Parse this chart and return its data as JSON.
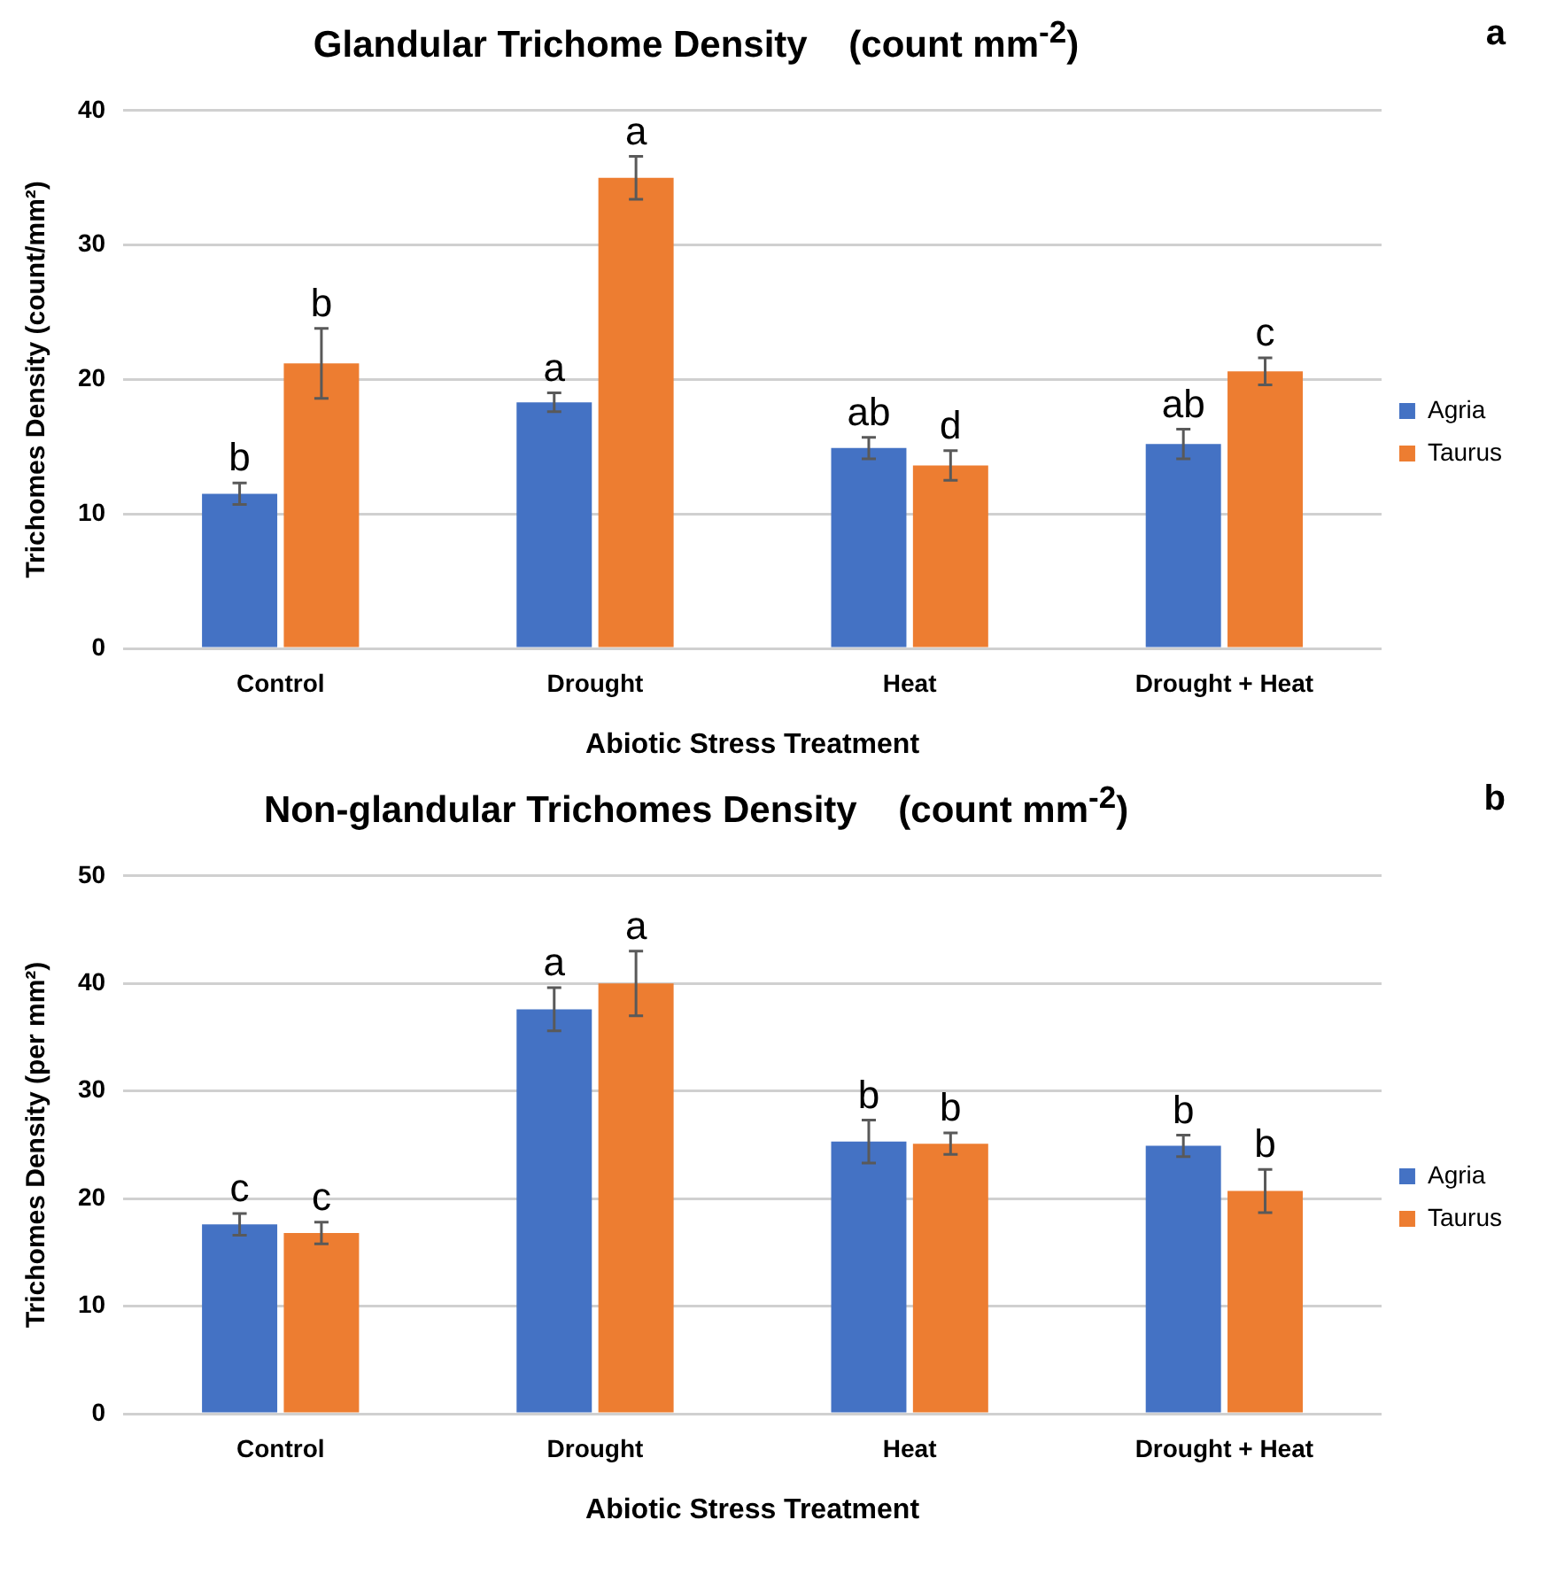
{
  "chart_data": [
    {
      "type": "bar",
      "title": "Glandular Trichome Density    (count mm$^{-2}$)",
      "xlabel": "Abiotic Stress Treatment",
      "ylabel": "Trichomes Density (count/mm²)",
      "annotations": [
        "a"
      ],
      "categories": [
        "Control",
        "Drought",
        "Heat",
        "Drought + Heat"
      ],
      "series": [
        {
          "name": "Agria",
          "color": "#4472c4",
          "values": [
            11.5,
            18.3,
            14.9,
            15.2
          ],
          "errors": [
            0.8,
            0.7,
            0.8,
            1.1
          ],
          "value_labels": [
            "b",
            "a",
            "ab",
            "ab"
          ]
        },
        {
          "name": "Taurus",
          "color": "#ed7d31",
          "values": [
            21.2,
            35.0,
            13.6,
            20.6
          ],
          "errors": [
            2.6,
            1.6,
            1.1,
            1.0
          ],
          "value_labels": [
            "b",
            "a",
            "d",
            "c"
          ]
        }
      ],
      "ylim": [
        0,
        40
      ],
      "yticks": [
        0,
        10,
        20,
        30,
        40
      ],
      "grid": "y",
      "legend": "right"
    },
    {
      "type": "bar",
      "title": "Non-glandular Trichomes Density    (count mm$^{-2}$)",
      "xlabel": "Abiotic Stress Treatment",
      "ylabel": "Trichomes Density (per mm²)",
      "annotations": [
        "b"
      ],
      "categories": [
        "Control",
        "Drought",
        "Heat",
        "Drought + Heat"
      ],
      "series": [
        {
          "name": "Agria",
          "color": "#4472c4",
          "values": [
            17.6,
            37.6,
            25.3,
            24.9
          ],
          "errors": [
            1.0,
            2.0,
            2.0,
            1.0
          ],
          "value_labels": [
            "c",
            "a",
            "b",
            "b"
          ]
        },
        {
          "name": "Taurus",
          "color": "#ed7d31",
          "values": [
            16.8,
            40.0,
            25.1,
            20.7
          ],
          "errors": [
            1.0,
            3.0,
            1.0,
            2.0
          ],
          "value_labels": [
            "c",
            "a",
            "b",
            "b"
          ]
        }
      ],
      "ylim": [
        0,
        50
      ],
      "yticks": [
        0,
        10,
        20,
        30,
        40,
        50
      ],
      "grid": "y",
      "legend": "right"
    }
  ]
}
